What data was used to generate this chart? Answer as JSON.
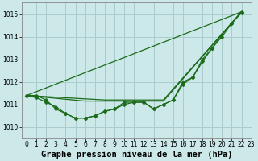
{
  "title": "Graphe pression niveau de la mer (hPa)",
  "background_color": "#cce8e8",
  "grid_color": "#aacccc",
  "line_color": "#1a6b1a",
  "xlim": [
    -0.5,
    23
  ],
  "ylim": [
    1009.5,
    1015.5
  ],
  "yticks": [
    1010,
    1011,
    1012,
    1013,
    1014,
    1015
  ],
  "xticks": [
    0,
    1,
    2,
    3,
    4,
    5,
    6,
    7,
    8,
    9,
    10,
    11,
    12,
    13,
    14,
    15,
    16,
    17,
    18,
    19,
    20,
    21,
    22,
    23
  ],
  "xticklabels": [
    "0",
    "1",
    "2",
    "3",
    "4",
    "5",
    "6",
    "7",
    "8",
    "9",
    "10",
    "11",
    "12",
    "13",
    "14",
    "15",
    "16",
    "17",
    "18",
    "19",
    "20",
    "21",
    "22",
    "23"
  ],
  "series_marked_x": [
    0,
    1,
    2,
    3,
    4,
    5,
    6,
    7,
    8,
    9,
    10,
    11,
    12,
    13,
    14,
    15,
    16,
    17,
    18,
    19,
    20,
    21,
    22
  ],
  "series_marked1": [
    1011.4,
    1011.4,
    1011.2,
    1010.8,
    1010.6,
    1010.4,
    1010.4,
    1010.5,
    1010.7,
    1010.8,
    1011.1,
    1011.1,
    1011.1,
    1010.8,
    1011.0,
    1011.2,
    1011.9,
    1012.2,
    1012.9,
    1013.5,
    1014.0,
    1014.6,
    1015.1
  ],
  "series_marked2": [
    1011.4,
    1011.3,
    1011.1,
    1010.9,
    1010.6,
    1010.4,
    1010.4,
    1010.5,
    1010.7,
    1010.8,
    1011.0,
    1011.1,
    1011.1,
    1010.8,
    1011.0,
    1011.2,
    1012.0,
    1012.2,
    1013.0,
    1013.5,
    1014.1,
    1014.6,
    1015.05
  ],
  "smooth_line1_x": [
    0,
    22
  ],
  "smooth_line1_y": [
    1011.4,
    1015.1
  ],
  "smooth_line2_x": [
    0,
    8,
    14,
    22
  ],
  "smooth_line2_y": [
    1011.4,
    1011.2,
    1011.2,
    1015.1
  ],
  "smooth_line3_x": [
    0,
    6,
    14,
    22
  ],
  "smooth_line3_y": [
    1011.4,
    1011.15,
    1011.15,
    1015.1
  ],
  "title_fontsize": 7.5,
  "tick_fontsize": 5.5,
  "marker_size": 2.5,
  "line_width": 0.9
}
